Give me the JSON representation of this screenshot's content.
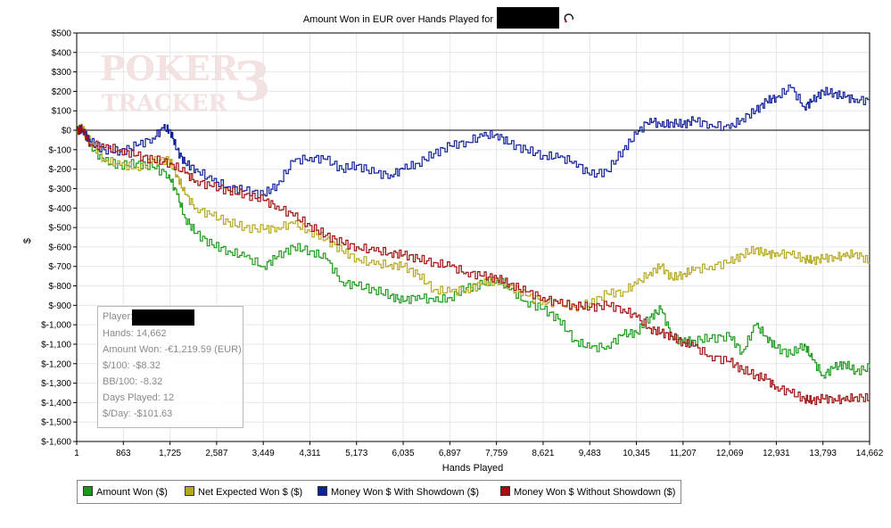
{
  "chart_data": {
    "type": "line",
    "title": "Amount Won in EUR over Hands Played for",
    "xlabel": "Hands Played",
    "ylabel": "$",
    "xlim": [
      1,
      14662
    ],
    "ylim": [
      -1600,
      500
    ],
    "x_ticks": [
      "1",
      "863",
      "1,725",
      "2,587",
      "3,449",
      "4,311",
      "5,173",
      "6,035",
      "6,897",
      "7,759",
      "8,621",
      "9,483",
      "10,345",
      "11,207",
      "12,069",
      "12,931",
      "13,793",
      "14,662"
    ],
    "y_ticks": [
      "$500",
      "$400",
      "$300",
      "$200",
      "$100",
      "$0",
      "$-100",
      "$-200",
      "$-300",
      "$-400",
      "$-500",
      "$-600",
      "$-700",
      "$-800",
      "$-900",
      "$-1,000",
      "$-1,100",
      "$-1,200",
      "$-1,300",
      "$-1,400",
      "$-1,500",
      "$-1,600"
    ],
    "grid": true,
    "legend_position": "bottom",
    "series": [
      {
        "name": "Amount Won ($)",
        "color": "#1a9a1a",
        "x": [
          1,
          100,
          250,
          500,
          800,
          1100,
          1400,
          1700,
          1850,
          2000,
          2200,
          2500,
          2800,
          3100,
          3449,
          3700,
          4000,
          4311,
          4600,
          4900,
          5173,
          5500,
          5800,
          6035,
          6300,
          6600,
          6897,
          7200,
          7500,
          7759,
          8000,
          8300,
          8621,
          8900,
          9200,
          9483,
          9800,
          10100,
          10345,
          10600,
          10800,
          11000,
          11207,
          11400,
          11700,
          12069,
          12300,
          12550,
          12750,
          12931,
          13200,
          13450,
          13600,
          13793,
          14000,
          14200,
          14400,
          14662
        ],
        "y": [
          0,
          10,
          -80,
          -160,
          -180,
          -170,
          -190,
          -230,
          -330,
          -450,
          -530,
          -590,
          -620,
          -650,
          -700,
          -650,
          -600,
          -620,
          -660,
          -780,
          -800,
          -820,
          -850,
          -880,
          -850,
          -880,
          -860,
          -810,
          -790,
          -760,
          -820,
          -880,
          -920,
          -970,
          -1080,
          -1120,
          -1110,
          -1050,
          -1040,
          -960,
          -920,
          -1060,
          -1090,
          -1080,
          -1070,
          -1060,
          -1140,
          -1000,
          -1060,
          -1120,
          -1150,
          -1100,
          -1180,
          -1260,
          -1220,
          -1200,
          -1240,
          -1220
        ]
      },
      {
        "name": "Net Expected Won $ ($)",
        "color": "#b5a81c",
        "x": [
          1,
          100,
          250,
          500,
          800,
          1100,
          1400,
          1700,
          1850,
          2000,
          2200,
          2500,
          2800,
          3100,
          3449,
          3700,
          4000,
          4311,
          4600,
          4900,
          5173,
          5500,
          5800,
          6035,
          6300,
          6600,
          6897,
          7200,
          7500,
          7759,
          8000,
          8300,
          8621,
          8900,
          9200,
          9483,
          9800,
          10100,
          10345,
          10600,
          10800,
          11000,
          11207,
          11400,
          11700,
          12069,
          12300,
          12550,
          12750,
          12931,
          13200,
          13450,
          13600,
          13793,
          14000,
          14200,
          14400,
          14662
        ],
        "y": [
          0,
          10,
          -60,
          -150,
          -180,
          -190,
          -160,
          -150,
          -230,
          -330,
          -400,
          -440,
          -470,
          -500,
          -510,
          -500,
          -480,
          -520,
          -560,
          -620,
          -660,
          -690,
          -690,
          -700,
          -740,
          -820,
          -830,
          -820,
          -790,
          -770,
          -800,
          -850,
          -880,
          -890,
          -910,
          -890,
          -840,
          -830,
          -790,
          -730,
          -700,
          -760,
          -740,
          -720,
          -700,
          -680,
          -640,
          -610,
          -640,
          -630,
          -640,
          -660,
          -670,
          -660,
          -650,
          -650,
          -630,
          -680
        ]
      },
      {
        "name": "Money Won $ With Showdown ($)",
        "color": "#10209a",
        "x": [
          1,
          100,
          250,
          500,
          800,
          1100,
          1400,
          1600,
          1725,
          1850,
          2000,
          2200,
          2500,
          2800,
          3100,
          3449,
          3700,
          4000,
          4311,
          4600,
          4900,
          5173,
          5500,
          5800,
          6035,
          6300,
          6600,
          6897,
          7200,
          7500,
          7759,
          8000,
          8300,
          8621,
          8900,
          9200,
          9483,
          9800,
          10100,
          10345,
          10600,
          10800,
          11000,
          11207,
          11400,
          11700,
          12069,
          12300,
          12550,
          12750,
          12931,
          13200,
          13450,
          13600,
          13793,
          14000,
          14200,
          14400,
          14662
        ],
        "y": [
          0,
          5,
          -60,
          -100,
          -110,
          -80,
          -40,
          10,
          0,
          -100,
          -170,
          -200,
          -260,
          -290,
          -310,
          -330,
          -280,
          -160,
          -140,
          -150,
          -200,
          -180,
          -220,
          -230,
          -200,
          -170,
          -120,
          -80,
          -60,
          -30,
          -20,
          -70,
          -100,
          -130,
          -140,
          -160,
          -230,
          -210,
          -100,
          -20,
          60,
          20,
          40,
          30,
          50,
          30,
          10,
          60,
          100,
          150,
          170,
          220,
          120,
          150,
          200,
          190,
          170,
          160,
          150
        ]
      },
      {
        "name": "Money Won $ Without Showdown ($)",
        "color": "#a01010",
        "x": [
          1,
          100,
          250,
          500,
          800,
          1100,
          1400,
          1725,
          2000,
          2200,
          2500,
          2800,
          3100,
          3449,
          3700,
          4000,
          4311,
          4600,
          4900,
          5173,
          5500,
          5800,
          6035,
          6300,
          6600,
          6897,
          7200,
          7500,
          7759,
          8000,
          8300,
          8621,
          8900,
          9200,
          9483,
          9800,
          10100,
          10345,
          10600,
          10800,
          11000,
          11207,
          11400,
          11700,
          12069,
          12300,
          12550,
          12750,
          12931,
          13200,
          13450,
          13600,
          13793,
          14000,
          14200,
          14400,
          14662
        ],
        "y": [
          0,
          5,
          -70,
          -90,
          -100,
          -130,
          -150,
          -170,
          -220,
          -260,
          -290,
          -310,
          -330,
          -360,
          -390,
          -440,
          -490,
          -540,
          -580,
          -600,
          -620,
          -630,
          -640,
          -660,
          -680,
          -700,
          -730,
          -750,
          -760,
          -790,
          -830,
          -860,
          -890,
          -900,
          -910,
          -900,
          -920,
          -960,
          -1020,
          -1040,
          -1060,
          -1090,
          -1110,
          -1160,
          -1190,
          -1230,
          -1260,
          -1280,
          -1320,
          -1350,
          -1380,
          -1390,
          -1380,
          -1380,
          -1390,
          -1370,
          -1380
        ]
      }
    ]
  },
  "stats": {
    "player_label": "Player:",
    "hands": "Hands: 14,662",
    "amount_won": "Amount Won: -€1,219.59 (EUR)",
    "per100": "$/100: -$8.32",
    "bb100": "BB/100: -8.32",
    "days_played": "Days Played: 12",
    "per_day": "$/Day: -$101.63"
  },
  "watermark": {
    "line1": "POKER",
    "line2": "TRACKER",
    "mark": "3"
  }
}
